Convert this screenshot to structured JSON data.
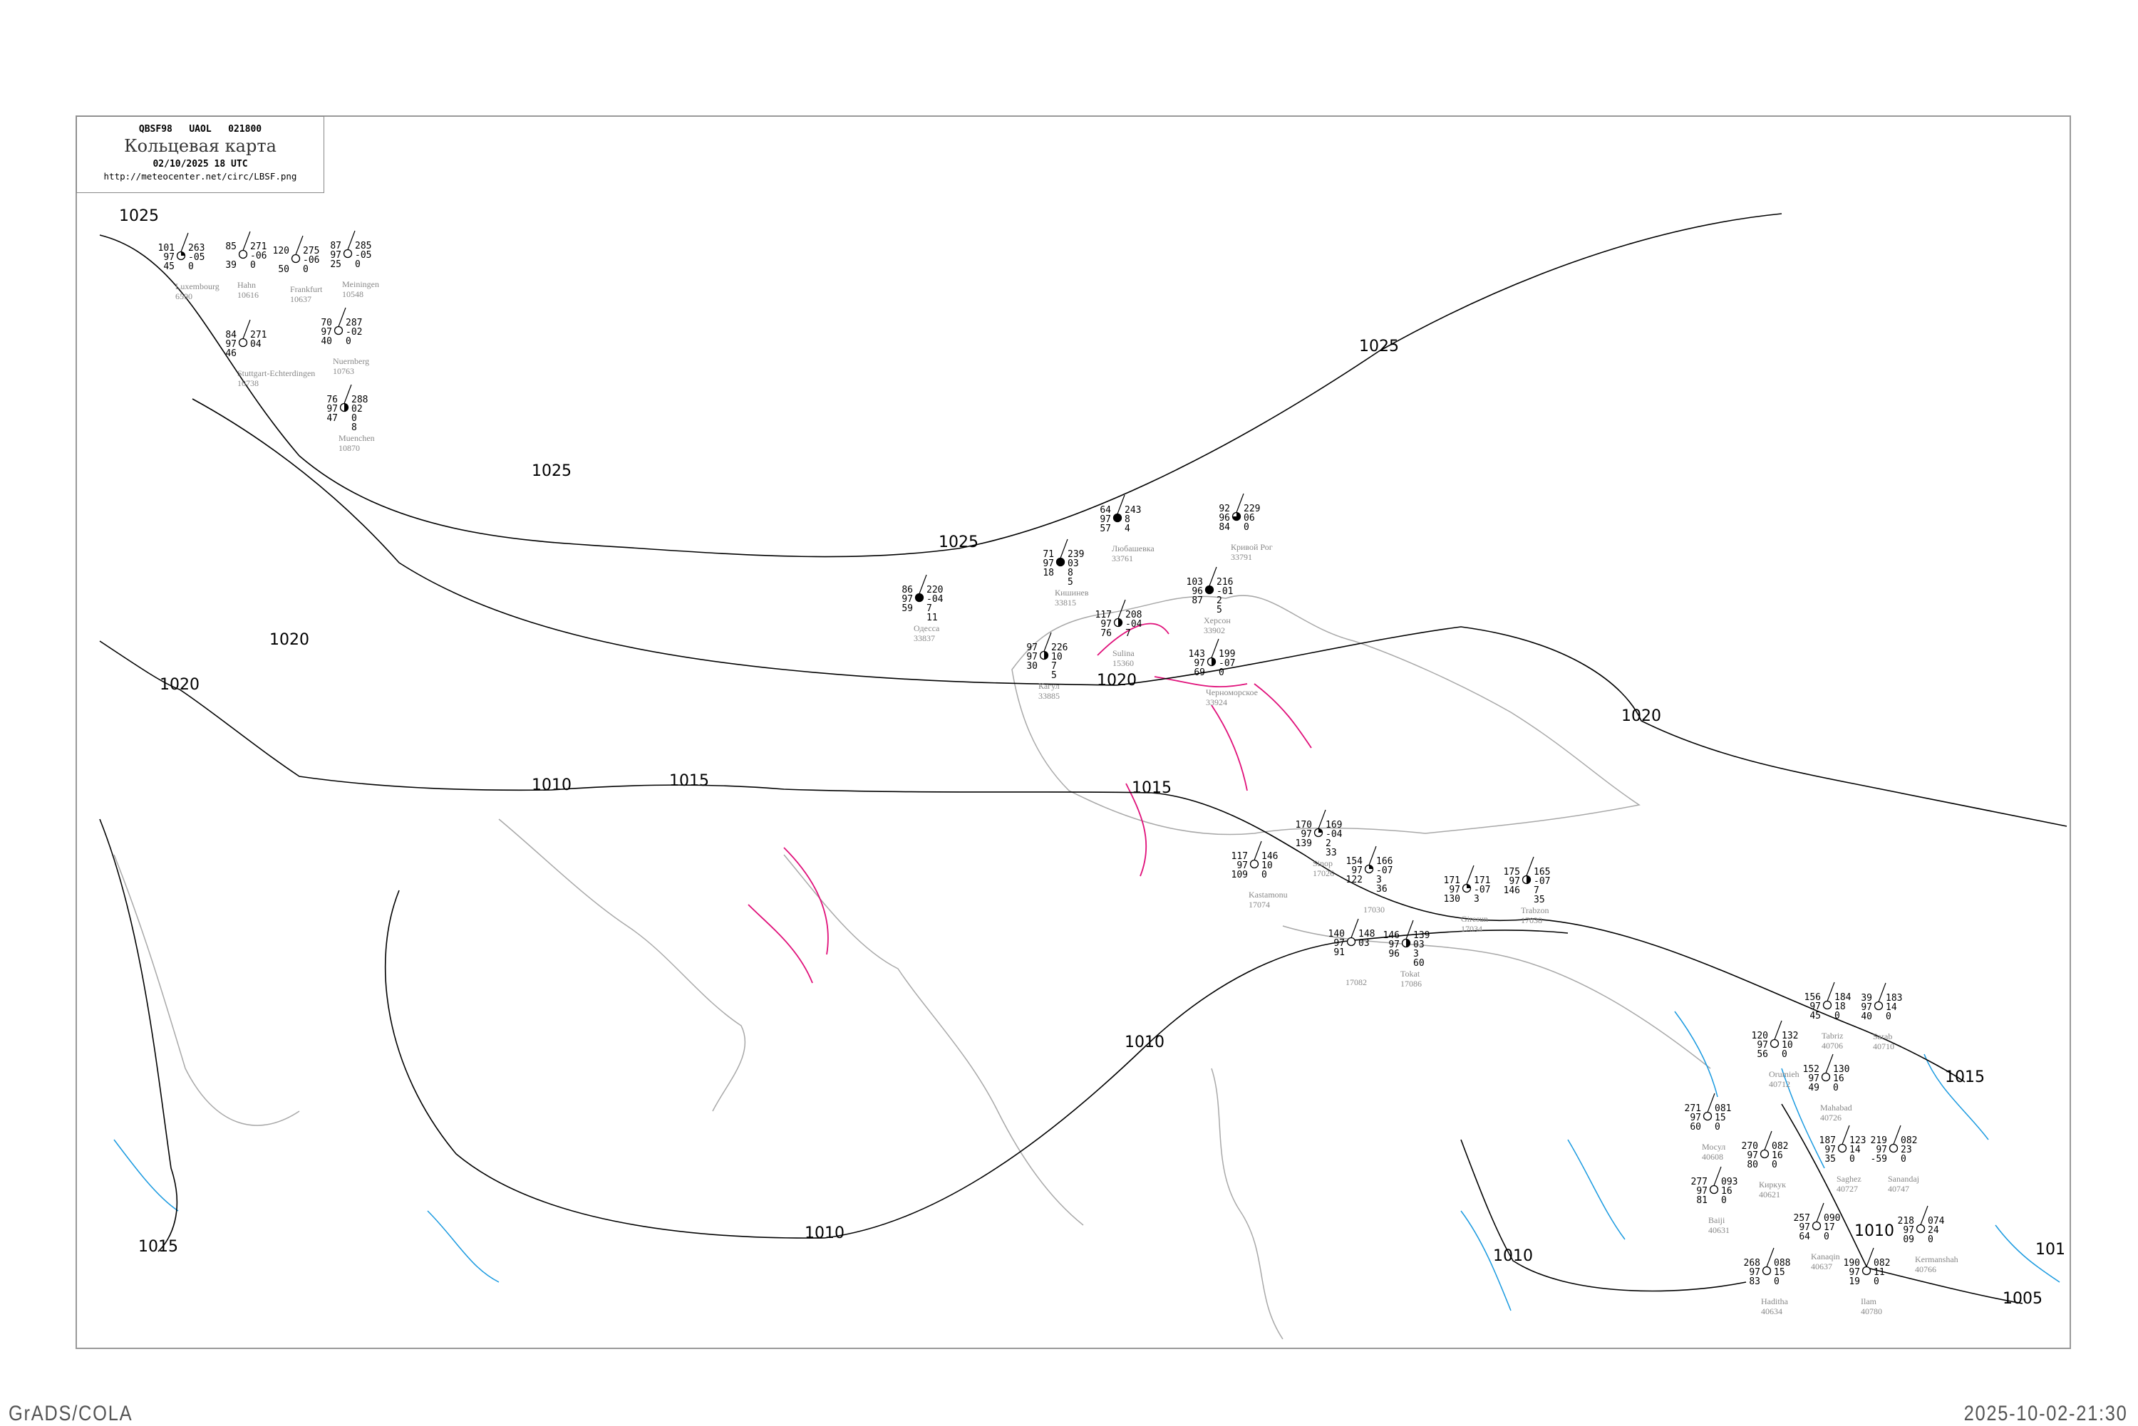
{
  "header": {
    "code_line": "QBSF98   UAOL   021800",
    "title": "Кольцевая карта",
    "datetime": "02/10/2025 18 UTC",
    "url": "http://meteocenter.net/circ/LBSF.png"
  },
  "footer": {
    "left": "GrADS/COLA",
    "right": "2025-10-02-21:30"
  },
  "colors": {
    "isobar": "#000000",
    "coast": "#a0a0a0",
    "isotherm_warm": "#e0107a",
    "rivers": "#1a9ae0",
    "station_name": "#888888"
  },
  "isobar_labels": [
    "1025",
    "1025",
    "1025",
    "1025",
    "1020",
    "1020",
    "1020",
    "1020",
    "1015",
    "1015",
    "1015",
    "1015",
    "1010",
    "1010",
    "1010",
    "1010",
    "1010",
    "1005",
    "101"
  ],
  "stations": [
    {
      "name": "Кишинев",
      "id": "33815",
      "t": "71",
      "p": "97",
      "td": "18",
      "ppp": "239",
      "tend": "03",
      "r1": "8",
      "r2": "5",
      "cover": 1
    },
    {
      "name": "Одесса",
      "id": "33837",
      "t": "86",
      "p": "97",
      "td": "59",
      "ppp": "220",
      "tend": "-04",
      "r1": "7",
      "r2": "11",
      "cover": 1
    },
    {
      "name": "Херсон",
      "id": "33902",
      "t": "103",
      "p": "96",
      "td": "87",
      "ppp": "216",
      "tend": "-01",
      "r1": "2",
      "r2": "5",
      "cover": 1
    },
    {
      "name": "Кривой Рог",
      "id": "33791",
      "t": "92",
      "p": "96",
      "td": "84",
      "ppp": "229",
      "tend": "06",
      "r1": "0",
      "r2": "",
      "cover": 0.75
    },
    {
      "name": "Любашевка",
      "id": "33761",
      "t": "64",
      "p": "97",
      "td": "57",
      "ppp": "243",
      "tend": "8",
      "r1": "4",
      "r2": "",
      "cover": 1
    },
    {
      "name": "Кагул",
      "id": "33885",
      "t": "97",
      "p": "97",
      "td": "30",
      "ppp": "226",
      "tend": "10",
      "r1": "7",
      "r2": "5",
      "cover": 0.5
    },
    {
      "name": "Sulina",
      "id": "15360",
      "t": "117",
      "p": "97",
      "td": "76",
      "ppp": "208",
      "tend": "-04",
      "r1": "7",
      "r2": "",
      "cover": 0.5
    },
    {
      "name": "Черноморское",
      "id": "33924",
      "t": "143",
      "p": "97",
      "td": "69",
      "ppp": "199",
      "tend": "-07",
      "r1": "0",
      "r2": "",
      "cover": 0.5
    },
    {
      "name": "Sinop",
      "id": "17026",
      "t": "170",
      "p": "97",
      "td": "139",
      "ppp": "169",
      "tend": "-04",
      "r1": "2",
      "r2": "33",
      "cover": 0.25
    },
    {
      "name": "Kastamonu",
      "id": "17074",
      "t": "117",
      "p": "97",
      "td": "109",
      "ppp": "146",
      "tend": "10",
      "r1": "0",
      "r2": "",
      "cover": 0
    },
    {
      "name": "",
      "id": "17030",
      "t": "154",
      "p": "97",
      "td": "122",
      "ppp": "166",
      "tend": "-07",
      "r1": "3",
      "r2": "36",
      "cover": 0.25
    },
    {
      "name": "",
      "id": "17082",
      "t": "140",
      "p": "97",
      "td": "91",
      "ppp": "148",
      "tend": "03",
      "r1": "",
      "r2": "",
      "cover": 0
    },
    {
      "name": "Tokat",
      "id": "17086",
      "t": "146",
      "p": "97",
      "td": "96",
      "ppp": "139",
      "tend": "03",
      "r1": "3",
      "r2": "60",
      "cover": 0.5
    },
    {
      "name": "Giresun",
      "id": "17034",
      "t": "171",
      "p": "97",
      "td": "130",
      "ppp": "171",
      "tend": "-07",
      "r1": "3",
      "r2": "",
      "cover": 0.25
    },
    {
      "name": "Trabzon",
      "id": "17038",
      "t": "175",
      "p": "97",
      "td": "146",
      "ppp": "165",
      "tend": "-07",
      "r1": "7",
      "r2": "35",
      "cover": 0.5
    },
    {
      "name": "Luxembourg",
      "id": "6590",
      "t": "101",
      "p": "97",
      "td": "45",
      "ppp": "263",
      "tend": "-05",
      "r1": "0",
      "r2": "",
      "cover": 0.25
    },
    {
      "name": "Hahn",
      "id": "10616",
      "t": "85",
      "p": "",
      "td": "39",
      "ppp": "271",
      "tend": "-06",
      "r1": "0",
      "r2": "",
      "cover": 0
    },
    {
      "name": "Frankfurt",
      "id": "10637",
      "t": "120",
      "p": "",
      "td": "50",
      "ppp": "275",
      "tend": "-06",
      "r1": "0",
      "r2": "",
      "cover": 0
    },
    {
      "name": "Meiningen",
      "id": "10548",
      "t": "87",
      "p": "97",
      "td": "25",
      "ppp": "285",
      "tend": "-05",
      "r1": "0",
      "r2": "",
      "cover": 0
    },
    {
      "name": "Nuernberg",
      "id": "10763",
      "t": "70",
      "p": "97",
      "td": "40",
      "ppp": "287",
      "tend": "-02",
      "r1": "0",
      "r2": "",
      "cover": 0
    },
    {
      "name": "Stuttgart-Echterdingen",
      "id": "10738",
      "t": "84",
      "p": "97",
      "td": "46",
      "ppp": "271",
      "tend": "04",
      "r1": "",
      "r2": "",
      "cover": 0
    },
    {
      "name": "Muenchen",
      "id": "10870",
      "t": "76",
      "p": "97",
      "td": "47",
      "ppp": "288",
      "tend": "02",
      "r1": "0",
      "r2": "8",
      "cover": 0.5
    },
    {
      "name": "Tabriz",
      "id": "40706",
      "t": "156",
      "p": "97",
      "td": "45",
      "ppp": "184",
      "tend": "18",
      "r1": "0",
      "r2": "",
      "cover": 0
    },
    {
      "name": "Sarab",
      "id": "40710",
      "t": "39",
      "p": "97",
      "td": "40",
      "ppp": "183",
      "tend": "14",
      "r1": "0",
      "r2": "",
      "cover": 0
    },
    {
      "name": "Orumieh",
      "id": "40712",
      "t": "120",
      "p": "97",
      "td": "56",
      "ppp": "132",
      "tend": "10",
      "r1": "0",
      "r2": "",
      "cover": 0
    },
    {
      "name": "Mahabad",
      "id": "40726",
      "t": "152",
      "p": "97",
      "td": "49",
      "ppp": "130",
      "tend": "16",
      "r1": "0",
      "r2": "",
      "cover": 0
    },
    {
      "name": "Saghez",
      "id": "40727",
      "t": "187",
      "p": "97",
      "td": "35",
      "ppp": "123",
      "tend": "14",
      "r1": "0",
      "r2": "",
      "cover": 0
    },
    {
      "name": "Мосул",
      "id": "40608",
      "t": "271",
      "p": "97",
      "td": "60",
      "ppp": "081",
      "tend": "15",
      "r1": "0",
      "r2": "",
      "cover": 0
    },
    {
      "name": "Киркук",
      "id": "40621",
      "t": "270",
      "p": "97",
      "td": "80",
      "ppp": "082",
      "tend": "16",
      "r1": "0",
      "r2": "",
      "cover": 0
    },
    {
      "name": "Sanandaj",
      "id": "40747",
      "t": "219",
      "p": "97",
      "td": "-59",
      "ppp": "082",
      "tend": "23",
      "r1": "0",
      "r2": "",
      "cover": 0
    },
    {
      "name": "Baiji",
      "id": "40631",
      "t": "277",
      "p": "97",
      "td": "81",
      "ppp": "093",
      "tend": "16",
      "r1": "0",
      "r2": "",
      "cover": 0
    },
    {
      "name": "Kermanshah",
      "id": "40766",
      "t": "218",
      "p": "97",
      "td": "09",
      "ppp": "074",
      "tend": "24",
      "r1": "0",
      "r2": "",
      "cover": 0
    },
    {
      "name": "Kanaqin",
      "id": "40637",
      "t": "257",
      "p": "97",
      "td": "64",
      "ppp": "090",
      "tend": "17",
      "r1": "0",
      "r2": "",
      "cover": 0
    },
    {
      "name": "Ilam",
      "id": "40780",
      "t": "190",
      "p": "97",
      "td": "19",
      "ppp": "082",
      "tend": "11",
      "r1": "0",
      "r2": "",
      "cover": 0
    },
    {
      "name": "Haditha",
      "id": "40634",
      "t": "268",
      "p": "97",
      "td": "83",
      "ppp": "088",
      "tend": "15",
      "r1": "0",
      "r2": "",
      "cover": 0
    }
  ]
}
